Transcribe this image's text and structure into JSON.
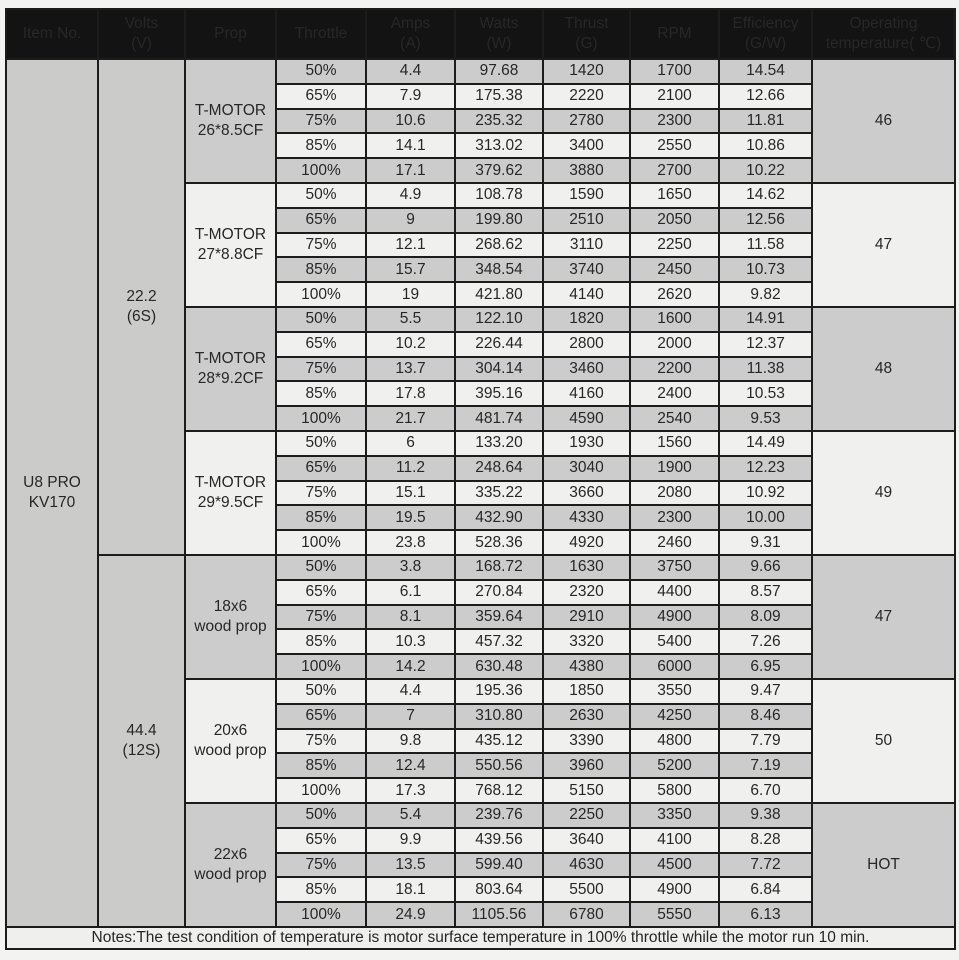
{
  "table": {
    "columns": [
      {
        "key": "item-no",
        "lines": [
          "Item No."
        ]
      },
      {
        "key": "volts",
        "lines": [
          "Volts",
          "(V)"
        ]
      },
      {
        "key": "prop",
        "lines": [
          "Prop"
        ]
      },
      {
        "key": "throttle",
        "lines": [
          "Throttle"
        ]
      },
      {
        "key": "amps",
        "lines": [
          "Amps",
          "(A)"
        ]
      },
      {
        "key": "watts",
        "lines": [
          "Watts",
          "(W)"
        ]
      },
      {
        "key": "thrust",
        "lines": [
          "Thrust",
          "(G)"
        ]
      },
      {
        "key": "rpm",
        "lines": [
          "RPM"
        ]
      },
      {
        "key": "efficiency",
        "lines": [
          "Efficiency",
          "(G/W)"
        ]
      },
      {
        "key": "operating-temperature",
        "lines": [
          "Operating",
          "temperature( ℃)"
        ]
      }
    ],
    "item": {
      "lines": [
        "U8 PRO",
        "KV170"
      ]
    },
    "voltage_groups": [
      {
        "volts_lines": [
          "22.2",
          "(6S)"
        ],
        "props": [
          {
            "name_lines": [
              "T-MOTOR",
              "26*8.5CF"
            ],
            "temp": "46",
            "rows": [
              {
                "throttle": "50%",
                "amps": "4.4",
                "watts": "97.68",
                "thrust": "1420",
                "rpm": "1700",
                "efficiency": "14.54"
              },
              {
                "throttle": "65%",
                "amps": "7.9",
                "watts": "175.38",
                "thrust": "2220",
                "rpm": "2100",
                "efficiency": "12.66"
              },
              {
                "throttle": "75%",
                "amps": "10.6",
                "watts": "235.32",
                "thrust": "2780",
                "rpm": "2300",
                "efficiency": "11.81"
              },
              {
                "throttle": "85%",
                "amps": "14.1",
                "watts": "313.02",
                "thrust": "3400",
                "rpm": "2550",
                "efficiency": "10.86"
              },
              {
                "throttle": "100%",
                "amps": "17.1",
                "watts": "379.62",
                "thrust": "3880",
                "rpm": "2700",
                "efficiency": "10.22"
              }
            ]
          },
          {
            "name_lines": [
              "T-MOTOR",
              "27*8.8CF"
            ],
            "temp": "47",
            "rows": [
              {
                "throttle": "50%",
                "amps": "4.9",
                "watts": "108.78",
                "thrust": "1590",
                "rpm": "1650",
                "efficiency": "14.62"
              },
              {
                "throttle": "65%",
                "amps": "9",
                "watts": "199.80",
                "thrust": "2510",
                "rpm": "2050",
                "efficiency": "12.56"
              },
              {
                "throttle": "75%",
                "amps": "12.1",
                "watts": "268.62",
                "thrust": "3110",
                "rpm": "2250",
                "efficiency": "11.58"
              },
              {
                "throttle": "85%",
                "amps": "15.7",
                "watts": "348.54",
                "thrust": "3740",
                "rpm": "2450",
                "efficiency": "10.73"
              },
              {
                "throttle": "100%",
                "amps": "19",
                "watts": "421.80",
                "thrust": "4140",
                "rpm": "2620",
                "efficiency": "9.82"
              }
            ]
          },
          {
            "name_lines": [
              "T-MOTOR",
              "28*9.2CF"
            ],
            "temp": "48",
            "rows": [
              {
                "throttle": "50%",
                "amps": "5.5",
                "watts": "122.10",
                "thrust": "1820",
                "rpm": "1600",
                "efficiency": "14.91"
              },
              {
                "throttle": "65%",
                "amps": "10.2",
                "watts": "226.44",
                "thrust": "2800",
                "rpm": "2000",
                "efficiency": "12.37"
              },
              {
                "throttle": "75%",
                "amps": "13.7",
                "watts": "304.14",
                "thrust": "3460",
                "rpm": "2200",
                "efficiency": "11.38"
              },
              {
                "throttle": "85%",
                "amps": "17.8",
                "watts": "395.16",
                "thrust": "4160",
                "rpm": "2400",
                "efficiency": "10.53"
              },
              {
                "throttle": "100%",
                "amps": "21.7",
                "watts": "481.74",
                "thrust": "4590",
                "rpm": "2540",
                "efficiency": "9.53"
              }
            ]
          },
          {
            "name_lines": [
              "T-MOTOR",
              "29*9.5CF"
            ],
            "temp": "49",
            "rows": [
              {
                "throttle": "50%",
                "amps": "6",
                "watts": "133.20",
                "thrust": "1930",
                "rpm": "1560",
                "efficiency": "14.49"
              },
              {
                "throttle": "65%",
                "amps": "11.2",
                "watts": "248.64",
                "thrust": "3040",
                "rpm": "1900",
                "efficiency": "12.23"
              },
              {
                "throttle": "75%",
                "amps": "15.1",
                "watts": "335.22",
                "thrust": "3660",
                "rpm": "2080",
                "efficiency": "10.92"
              },
              {
                "throttle": "85%",
                "amps": "19.5",
                "watts": "432.90",
                "thrust": "4330",
                "rpm": "2300",
                "efficiency": "10.00"
              },
              {
                "throttle": "100%",
                "amps": "23.8",
                "watts": "528.36",
                "thrust": "4920",
                "rpm": "2460",
                "efficiency": "9.31"
              }
            ]
          }
        ]
      },
      {
        "volts_lines": [
          "44.4",
          "(12S)"
        ],
        "props": [
          {
            "name_lines": [
              "18x6",
              "wood prop"
            ],
            "temp": "47",
            "rows": [
              {
                "throttle": "50%",
                "amps": "3.8",
                "watts": "168.72",
                "thrust": "1630",
                "rpm": "3750",
                "efficiency": "9.66"
              },
              {
                "throttle": "65%",
                "amps": "6.1",
                "watts": "270.84",
                "thrust": "2320",
                "rpm": "4400",
                "efficiency": "8.57"
              },
              {
                "throttle": "75%",
                "amps": "8.1",
                "watts": "359.64",
                "thrust": "2910",
                "rpm": "4900",
                "efficiency": "8.09"
              },
              {
                "throttle": "85%",
                "amps": "10.3",
                "watts": "457.32",
                "thrust": "3320",
                "rpm": "5400",
                "efficiency": "7.26"
              },
              {
                "throttle": "100%",
                "amps": "14.2",
                "watts": "630.48",
                "thrust": "4380",
                "rpm": "6000",
                "efficiency": "6.95"
              }
            ]
          },
          {
            "name_lines": [
              "20x6",
              "wood prop"
            ],
            "temp": "50",
            "rows": [
              {
                "throttle": "50%",
                "amps": "4.4",
                "watts": "195.36",
                "thrust": "1850",
                "rpm": "3550",
                "efficiency": "9.47"
              },
              {
                "throttle": "65%",
                "amps": "7",
                "watts": "310.80",
                "thrust": "2630",
                "rpm": "4250",
                "efficiency": "8.46"
              },
              {
                "throttle": "75%",
                "amps": "9.8",
                "watts": "435.12",
                "thrust": "3390",
                "rpm": "4800",
                "efficiency": "7.79"
              },
              {
                "throttle": "85%",
                "amps": "12.4",
                "watts": "550.56",
                "thrust": "3960",
                "rpm": "5200",
                "efficiency": "7.19"
              },
              {
                "throttle": "100%",
                "amps": "17.3",
                "watts": "768.12",
                "thrust": "5150",
                "rpm": "5800",
                "efficiency": "6.70"
              }
            ]
          },
          {
            "name_lines": [
              "22x6",
              "wood prop"
            ],
            "temp": "HOT",
            "rows": [
              {
                "throttle": "50%",
                "amps": "5.4",
                "watts": "239.76",
                "thrust": "2250",
                "rpm": "3350",
                "efficiency": "9.38"
              },
              {
                "throttle": "65%",
                "amps": "9.9",
                "watts": "439.56",
                "thrust": "3640",
                "rpm": "4100",
                "efficiency": "8.28"
              },
              {
                "throttle": "75%",
                "amps": "13.5",
                "watts": "599.40",
                "thrust": "4630",
                "rpm": "4500",
                "efficiency": "7.72"
              },
              {
                "throttle": "85%",
                "amps": "18.1",
                "watts": "803.64",
                "thrust": "5500",
                "rpm": "4900",
                "efficiency": "6.84"
              },
              {
                "throttle": "100%",
                "amps": "24.9",
                "watts": "1105.56",
                "thrust": "6780",
                "rpm": "5550",
                "efficiency": "6.13"
              }
            ]
          }
        ]
      }
    ],
    "notes": "Notes:The test condition of temperature is motor surface temperature in 100% throttle while the motor run 10 min.",
    "colors": {
      "header_bg": "#131313",
      "header_text": "#f5f5f5",
      "row_gray": "#cccccc",
      "row_light": "#f0f0ef",
      "border": "#1c1c1c"
    }
  }
}
